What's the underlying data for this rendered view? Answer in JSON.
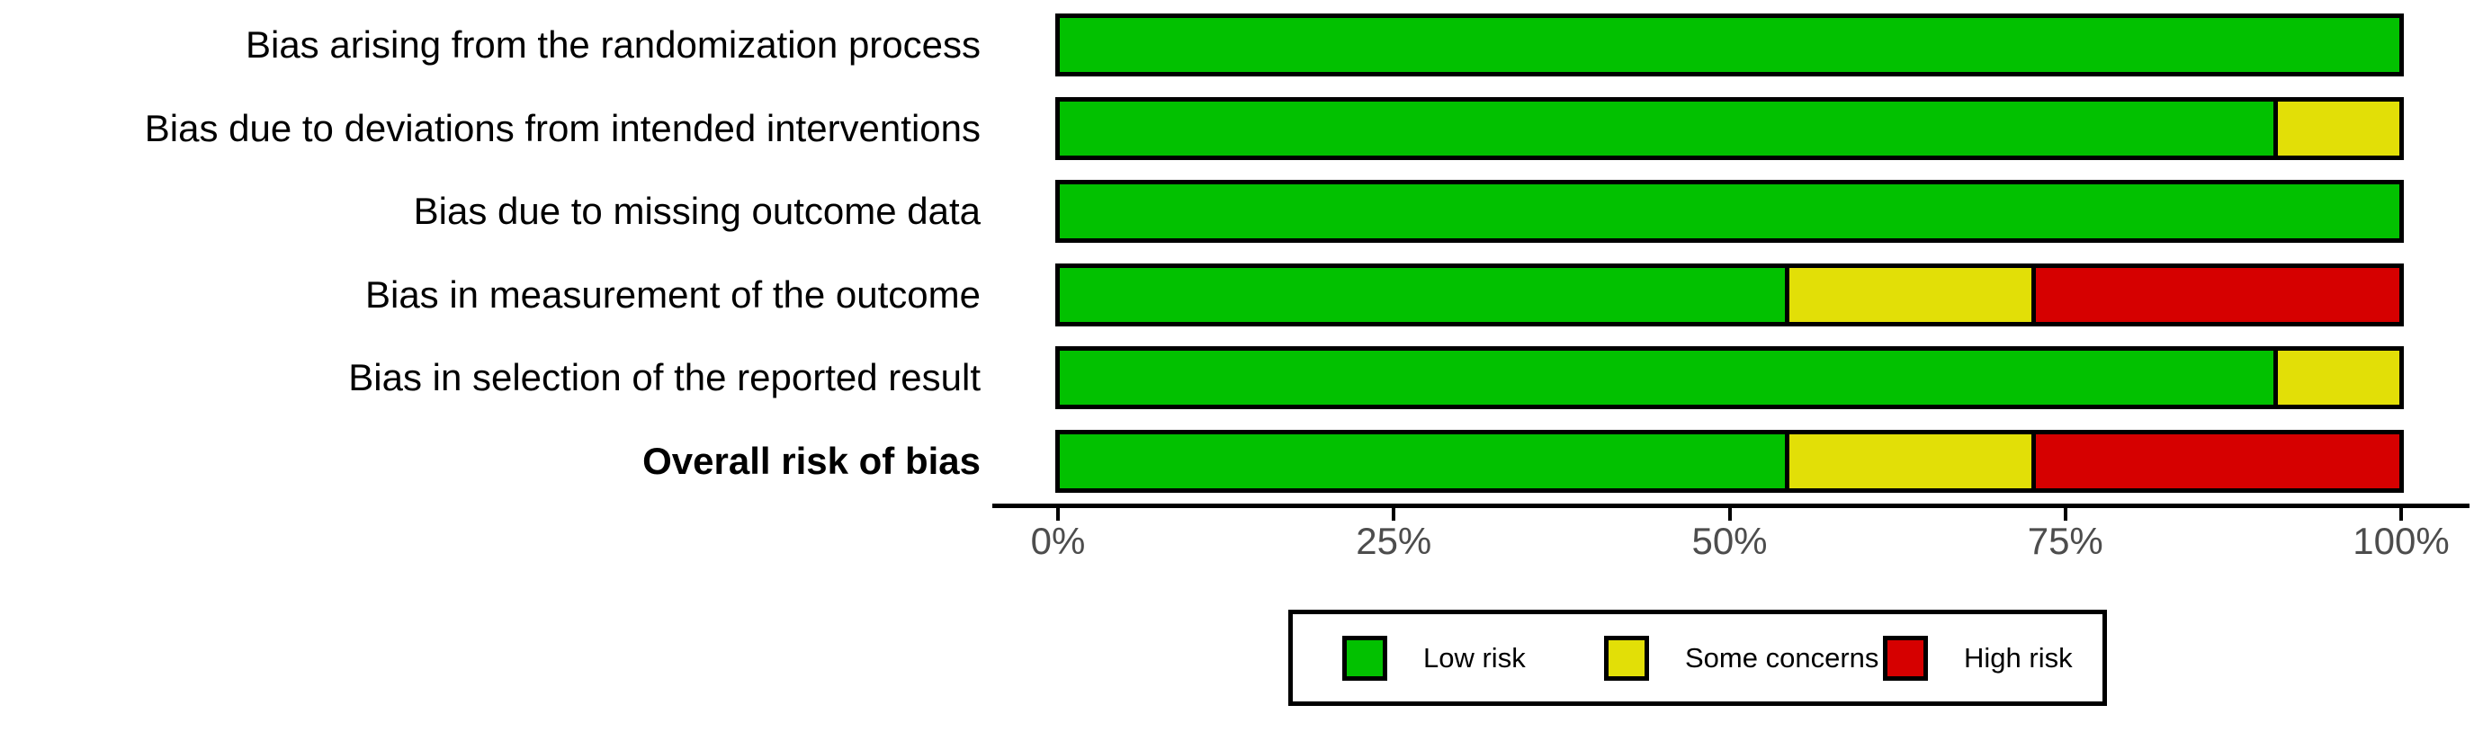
{
  "chart_data": {
    "type": "bar",
    "orientation": "horizontal",
    "stacked": true,
    "unit": "percent",
    "title": "",
    "xlabel": "",
    "ylabel": "",
    "xlim": [
      0,
      100
    ],
    "grid": false,
    "categories": [
      "Bias arising from the randomization process",
      "Bias due to deviations from intended interventions",
      "Bias due to missing outcome data",
      "Bias in measurement of the outcome",
      "Bias in selection of the reported result",
      "Overall risk of bias"
    ],
    "bold_categories": [
      false,
      false,
      false,
      false,
      false,
      true
    ],
    "series": [
      {
        "name": "Low risk",
        "color": "#02C100",
        "values": [
          100,
          90.9,
          100,
          54.5,
          90.9,
          54.5
        ]
      },
      {
        "name": "Some concerns",
        "color": "#E2DF07",
        "values": [
          0,
          9.1,
          0,
          18.2,
          9.1,
          18.2
        ]
      },
      {
        "name": "High risk",
        "color": "#D60000",
        "values": [
          0,
          0,
          0,
          27.3,
          0,
          27.3
        ]
      }
    ],
    "x_ticks": [
      {
        "value": 0,
        "label": "0%"
      },
      {
        "value": 25,
        "label": "25%"
      },
      {
        "value": 50,
        "label": "50%"
      },
      {
        "value": 75,
        "label": "75%"
      },
      {
        "value": 100,
        "label": "100%"
      }
    ],
    "legend": {
      "position": "bottom",
      "items": [
        {
          "label": "Low risk",
          "color": "#02C100"
        },
        {
          "label": "Some concerns",
          "color": "#E2DF07"
        },
        {
          "label": "High risk",
          "color": "#D60000"
        }
      ]
    }
  }
}
